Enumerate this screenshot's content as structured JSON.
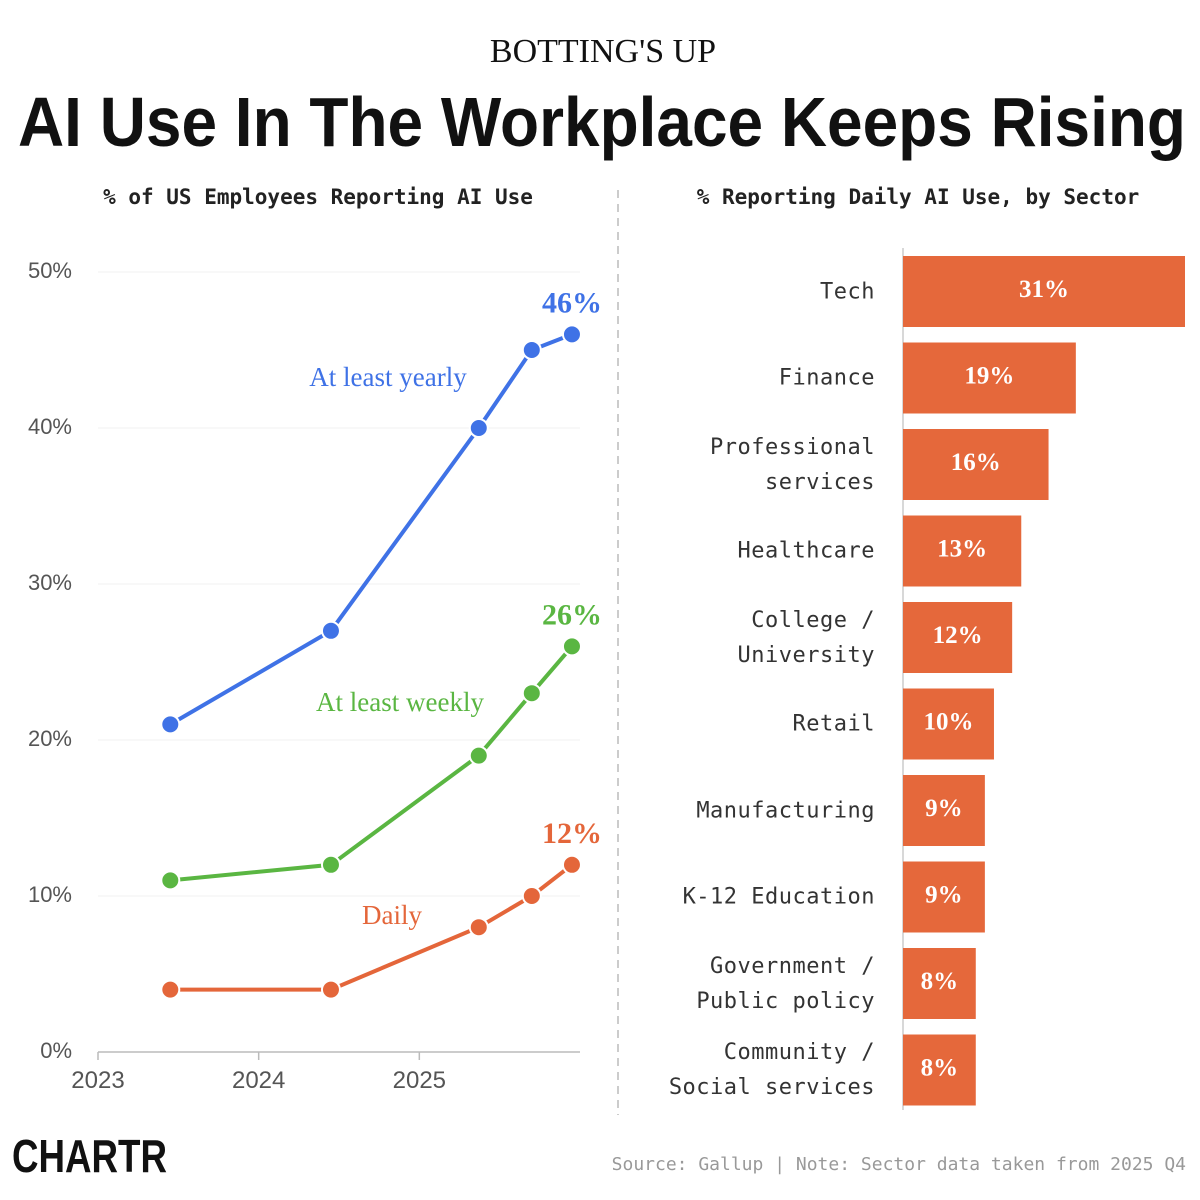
{
  "header": {
    "kicker": "BOTTING'S UP",
    "title": "AI Use In The Workplace Keeps Rising"
  },
  "footer": {
    "logo": "CHARTR",
    "source": "Source: Gallup | Note: Sector data taken from 2025 Q4"
  },
  "chart_data": [
    {
      "type": "line",
      "title": "% of US Employees Reporting AI Use",
      "x": [
        2023.45,
        2024.45,
        2025.37,
        2025.7,
        2025.95
      ],
      "xlim": [
        2023,
        2026
      ],
      "xticks": [
        2023,
        2024,
        2025
      ],
      "ylim": [
        0,
        50
      ],
      "yticks": [
        {
          "value": 0,
          "label": "0%"
        },
        {
          "value": 10,
          "label": "10%"
        },
        {
          "value": 20,
          "label": "20%"
        },
        {
          "value": 30,
          "label": "30%"
        },
        {
          "value": 40,
          "label": "40%"
        },
        {
          "value": 50,
          "label": "50%"
        }
      ],
      "grid": true,
      "series": [
        {
          "name": "At least yearly",
          "color": "#3f72e6",
          "values": [
            21,
            27,
            40,
            45,
            46
          ],
          "value_labels": [
            null,
            null,
            null,
            null,
            "46%"
          ]
        },
        {
          "name": "At least weekly",
          "color": "#5ab642",
          "values": [
            11,
            12,
            19,
            23,
            26
          ],
          "value_labels": [
            null,
            null,
            null,
            null,
            "26%"
          ]
        },
        {
          "name": "Daily",
          "color": "#e4663a",
          "values": [
            4,
            4,
            8,
            10,
            12
          ],
          "value_labels": [
            null,
            null,
            null,
            null,
            "12%"
          ]
        }
      ]
    },
    {
      "type": "barh",
      "title": "% Reporting Daily AI Use, by Sector",
      "color": "#e5683b",
      "categories": [
        "Tech",
        "Finance",
        "Professional services",
        "Healthcare",
        "College / University",
        "Retail",
        "Manufacturing",
        "K-12 Education",
        "Government / Public policy",
        "Community / Social services"
      ],
      "values": [
        31,
        19,
        16,
        13,
        12,
        10,
        9,
        9,
        8,
        8
      ],
      "value_labels": [
        "31%",
        "19%",
        "16%",
        "13%",
        "12%",
        "10%",
        "9%",
        "9%",
        "8%",
        "8%"
      ]
    }
  ]
}
